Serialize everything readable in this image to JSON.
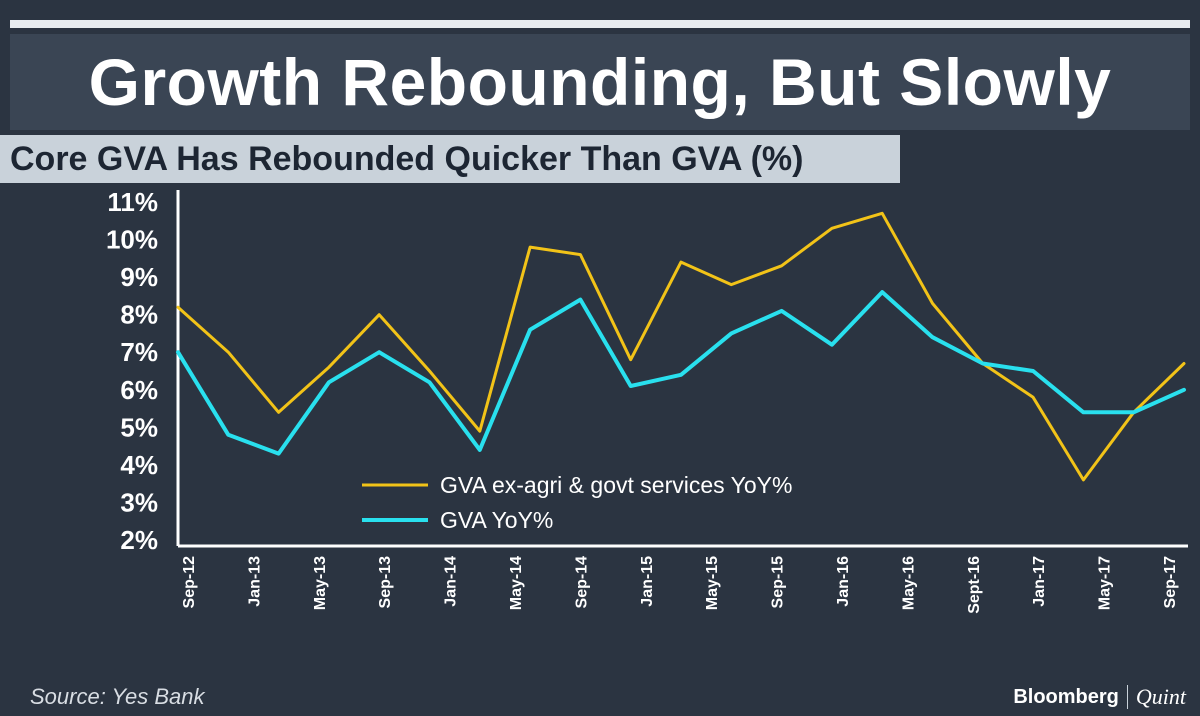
{
  "header": {
    "title": "Growth Rebounding, But Slowly",
    "subtitle": "Core GVA Has Rebounded Quicker Than GVA (%)"
  },
  "footer": {
    "source": "Source: Yes Bank",
    "brand_primary": "Bloomberg",
    "brand_secondary": "Quint"
  },
  "chart_data": {
    "type": "line",
    "title": "Core GVA Has Rebounded Quicker Than GVA (%)",
    "x": [
      "Sep-12",
      "Dec-12",
      "Mar-13",
      "Jun-13",
      "Sep-13",
      "Dec-13",
      "Mar-14",
      "Jun-14",
      "Sep-14",
      "Dec-14",
      "Mar-15",
      "Jun-15",
      "Sep-15",
      "Dec-15",
      "Mar-16",
      "Jun-16",
      "Sep-16",
      "Dec-16",
      "Mar-17",
      "Jun-17",
      "Sep-17"
    ],
    "x_tick_labels": [
      "Sep-12",
      "Jan-13",
      "May-13",
      "Sep-13",
      "Jan-14",
      "May-14",
      "Sep-14",
      "Jan-15",
      "May-15",
      "Sep-15",
      "Jan-16",
      "May-16",
      "Sept-16",
      "Jan-17",
      "May-17",
      "Sep-17"
    ],
    "y_tick_labels": [
      "2%",
      "3%",
      "4%",
      "5%",
      "6%",
      "7%",
      "8%",
      "9%",
      "10%",
      "11%"
    ],
    "ylim": [
      2,
      11
    ],
    "legend_position": "bottom-center",
    "grid": false,
    "series": [
      {
        "name": "GVA ex-agri & govt services YoY%",
        "color": "#f2c318",
        "values": [
          8.2,
          7.0,
          5.4,
          6.6,
          8.0,
          6.5,
          4.9,
          9.8,
          9.6,
          6.8,
          9.4,
          8.8,
          9.3,
          10.3,
          10.7,
          8.3,
          6.7,
          5.8,
          3.6,
          5.4,
          6.7
        ]
      },
      {
        "name": "GVA YoY%",
        "color": "#29e0ee",
        "values": [
          7.0,
          4.8,
          4.3,
          6.2,
          7.0,
          6.2,
          4.4,
          7.6,
          8.4,
          6.1,
          6.4,
          7.5,
          8.1,
          7.2,
          8.6,
          7.4,
          6.7,
          6.5,
          5.4,
          5.4,
          6.0
        ]
      }
    ]
  }
}
